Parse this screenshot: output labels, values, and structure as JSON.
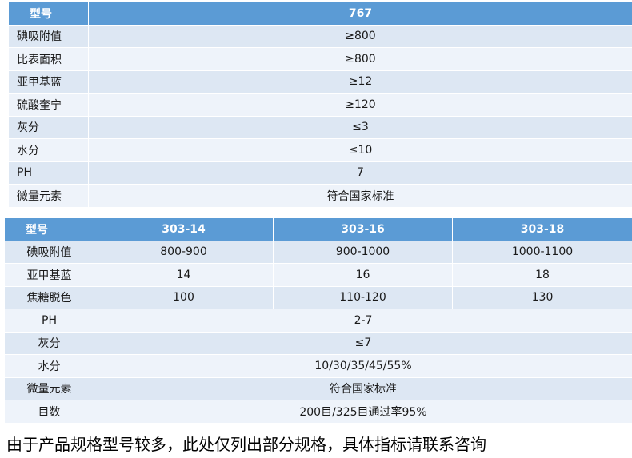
{
  "table1": {
    "header": {
      "label": "型号",
      "model": "767"
    },
    "rows": [
      {
        "label": "碘吸附值",
        "value": "≥800"
      },
      {
        "label": "比表面积",
        "value": "≥800"
      },
      {
        "label": "亚甲基蓝",
        "value": "≥12"
      },
      {
        "label": "硫酸奎宁",
        "value": "≥120"
      },
      {
        "label": "灰分",
        "value": "≤3"
      },
      {
        "label": "水分",
        "value": "≤10"
      },
      {
        "label": "PH",
        "value": "7"
      },
      {
        "label": "微量元素",
        "value": "符合国家标准"
      }
    ]
  },
  "table2": {
    "header": {
      "label": "型号",
      "models": [
        "303-14",
        "303-16",
        "303-18"
      ]
    },
    "rows_split": [
      {
        "label": "碘吸附值",
        "values": [
          "800-900",
          "900-1000",
          "1000-1100"
        ]
      },
      {
        "label": "亚甲基蓝",
        "values": [
          "14",
          "16",
          "18"
        ]
      },
      {
        "label": "焦糖脱色",
        "values": [
          "100",
          "110-120",
          "130"
        ]
      }
    ],
    "rows_merged": [
      {
        "label": "PH",
        "value": "2-7"
      },
      {
        "label": "灰分",
        "value": "≤7"
      },
      {
        "label": "水分",
        "value": "10/30/35/45/55%"
      },
      {
        "label": "微量元素",
        "value": "符合国家标准"
      },
      {
        "label": "目数",
        "value": "200目/325目通过率95%"
      }
    ]
  },
  "footer_note": "由于产品规格型号较多，此处仅列出部分规格，具体指标请联系咨询",
  "colors": {
    "header_bg": "#5b9bd5",
    "row_light": "#dde7f3",
    "row_mid": "#eef3fa"
  }
}
